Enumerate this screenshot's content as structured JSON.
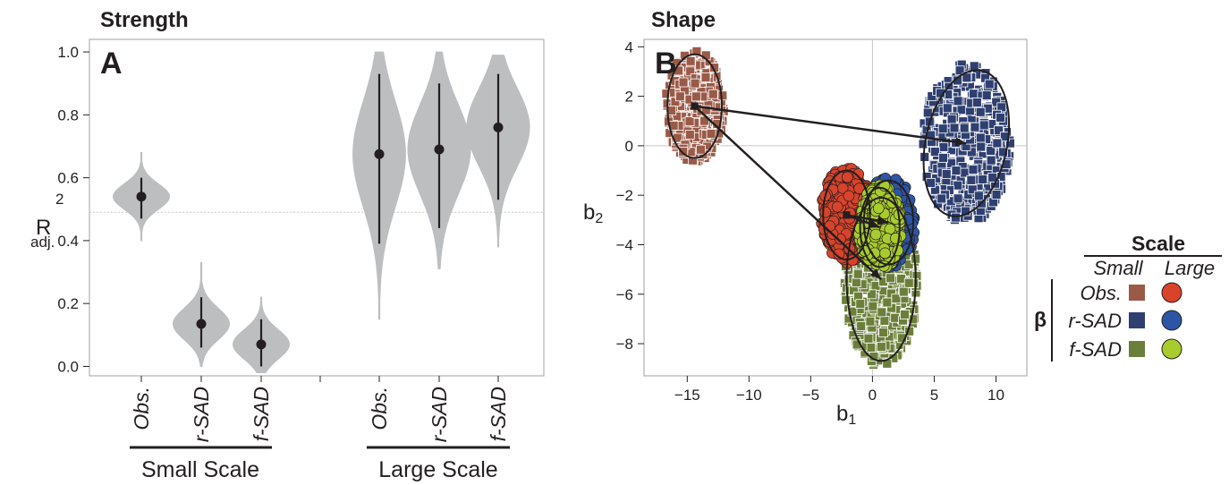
{
  "chart_data": [
    {
      "type": "violin",
      "title": "Strength",
      "panel_label": "A",
      "ylabel": {
        "main": "R",
        "sup": "2",
        "sub": "adj."
      },
      "ylim": [
        -0.03,
        1.04
      ],
      "yticks": [
        "0.0",
        "0.2",
        "0.4",
        "0.6",
        "0.8",
        "1.0"
      ],
      "reference_line": 0.49,
      "groups": [
        {
          "label": "Small Scale",
          "categories": [
            {
              "label": "Obs.",
              "median": 0.54,
              "lo": 0.47,
              "hi": 0.6,
              "tail_lo": 0.4,
              "tail_hi": 0.68,
              "width": 0.045
            },
            {
              "label": "r-SAD",
              "median": 0.135,
              "lo": 0.06,
              "hi": 0.22,
              "tail_lo": 0.0,
              "tail_hi": 0.33,
              "width": 0.045
            },
            {
              "label": "f-SAD",
              "median": 0.07,
              "lo": 0.0,
              "hi": 0.15,
              "tail_lo": -0.02,
              "tail_hi": 0.22,
              "width": 0.045
            }
          ]
        },
        {
          "label": "Large Scale",
          "categories": [
            {
              "label": "Obs.",
              "median": 0.675,
              "lo": 0.39,
              "hi": 0.93,
              "tail_lo": 0.15,
              "tail_hi": 1.0,
              "width": 0.042
            },
            {
              "label": "r-SAD",
              "median": 0.69,
              "lo": 0.44,
              "hi": 0.9,
              "tail_lo": 0.31,
              "tail_hi": 1.0,
              "width": 0.05
            },
            {
              "label": "f-SAD",
              "median": 0.76,
              "lo": 0.53,
              "hi": 0.93,
              "tail_lo": 0.38,
              "tail_hi": 0.99,
              "width": 0.05
            }
          ]
        }
      ]
    },
    {
      "type": "scatter",
      "title": "Shape",
      "panel_label": "B",
      "xlabel": "b1",
      "ylabel": "b2",
      "xlim": [
        -18.5,
        12.5
      ],
      "ylim": [
        -9.3,
        4.3
      ],
      "xticks": [
        "−15",
        "−10",
        "−5",
        "0",
        "5",
        "10"
      ],
      "yticks": [
        "4",
        "2",
        "0",
        "−2",
        "−4",
        "−6",
        "−8"
      ],
      "series": [
        {
          "beta": "Obs.",
          "scale": "Small",
          "marker": "square",
          "color": "#9a5a48",
          "center": [
            -14.4,
            1.6
          ],
          "radius": [
            2.2,
            2.1
          ]
        },
        {
          "beta": "r-SAD",
          "scale": "Small",
          "marker": "square",
          "color": "#2f3f70",
          "center": [
            7.6,
            0.1
          ],
          "radius": [
            3.3,
            3.0
          ]
        },
        {
          "beta": "f-SAD",
          "scale": "Small",
          "marker": "square",
          "color": "#6b7f3a",
          "center": [
            0.7,
            -5.4
          ],
          "radius": [
            2.8,
            3.3
          ]
        },
        {
          "beta": "Obs.",
          "scale": "Large",
          "marker": "circle",
          "color": "#d8432b",
          "center": [
            -2.1,
            -2.8
          ],
          "radius": [
            1.9,
            1.8
          ]
        },
        {
          "beta": "r-SAD",
          "scale": "Large",
          "marker": "circle",
          "color": "#2d55a6",
          "center": [
            1.3,
            -3.1
          ],
          "radius": [
            2.0,
            1.7
          ]
        },
        {
          "beta": "f-SAD",
          "scale": "Large",
          "marker": "circle",
          "color": "#a8cc2e",
          "center": [
            0.6,
            -3.3
          ],
          "radius": [
            1.6,
            1.6
          ]
        }
      ],
      "arrows": [
        {
          "from": [
            -14.4,
            1.6
          ],
          "to": [
            7.6,
            0.1
          ]
        },
        {
          "from": [
            -14.4,
            1.6
          ],
          "to": [
            0.7,
            -5.4
          ]
        },
        {
          "from": [
            -2.1,
            -2.8
          ],
          "to": [
            1.3,
            -3.1
          ]
        },
        {
          "from": [
            -2.1,
            -2.8
          ],
          "to": [
            0.6,
            -3.3
          ]
        }
      ],
      "legend": {
        "title": "Scale",
        "columns": [
          "Small",
          "Large"
        ],
        "row_title": "β",
        "rows": [
          "Obs.",
          "r-SAD",
          "f-SAD"
        ]
      }
    }
  ],
  "colors": {
    "violin_fill": "#bcbec0",
    "ink": "#231f20",
    "frame": "#b0b0b0"
  }
}
